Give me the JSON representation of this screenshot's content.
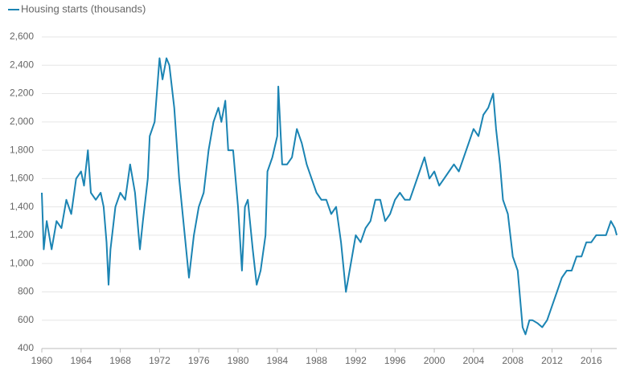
{
  "chart_data": {
    "type": "line",
    "series": [
      {
        "name": "Housing starts (thousands)",
        "color": "#1b84b3",
        "x": [
          1960.0,
          1960.2,
          1960.5,
          1961.0,
          1961.5,
          1962.0,
          1962.5,
          1963.0,
          1963.5,
          1964.0,
          1964.3,
          1964.7,
          1965.0,
          1965.5,
          1966.0,
          1966.3,
          1966.6,
          1966.8,
          1967.0,
          1967.5,
          1968.0,
          1968.5,
          1969.0,
          1969.5,
          1970.0,
          1970.3,
          1970.8,
          1971.0,
          1971.5,
          1972.0,
          1972.3,
          1972.7,
          1973.0,
          1973.5,
          1974.0,
          1974.5,
          1975.0,
          1975.5,
          1976.0,
          1976.5,
          1977.0,
          1977.5,
          1978.0,
          1978.3,
          1978.7,
          1979.0,
          1979.5,
          1980.0,
          1980.4,
          1980.7,
          1981.0,
          1981.5,
          1981.9,
          1982.3,
          1982.8,
          1983.0,
          1983.5,
          1984.0,
          1984.1,
          1984.5,
          1985.0,
          1985.5,
          1986.0,
          1986.5,
          1987.0,
          1987.5,
          1988.0,
          1988.5,
          1989.0,
          1989.5,
          1990.0,
          1990.5,
          1991.0,
          1991.5,
          1992.0,
          1992.5,
          1993.0,
          1993.5,
          1994.0,
          1994.5,
          1995.0,
          1995.5,
          1996.0,
          1996.5,
          1997.0,
          1997.5,
          1998.0,
          1998.5,
          1999.0,
          1999.5,
          2000.0,
          2000.5,
          2001.0,
          2001.5,
          2002.0,
          2002.5,
          2003.0,
          2003.5,
          2004.0,
          2004.5,
          2005.0,
          2005.5,
          2006.0,
          2006.3,
          2006.7,
          2007.0,
          2007.5,
          2008.0,
          2008.5,
          2009.0,
          2009.3,
          2009.7,
          2010.0,
          2010.5,
          2011.0,
          2011.5,
          2012.0,
          2012.5,
          2013.0,
          2013.5,
          2014.0,
          2014.5,
          2015.0,
          2015.5,
          2016.0,
          2016.5,
          2017.0,
          2017.5,
          2018.0,
          2018.4,
          2018.6
        ],
        "values": [
          1500,
          1100,
          1300,
          1100,
          1300,
          1250,
          1450,
          1350,
          1600,
          1650,
          1550,
          1800,
          1500,
          1450,
          1500,
          1400,
          1150,
          850,
          1100,
          1400,
          1500,
          1450,
          1700,
          1500,
          1100,
          1300,
          1600,
          1900,
          2000,
          2450,
          2300,
          2450,
          2400,
          2100,
          1600,
          1250,
          900,
          1200,
          1400,
          1500,
          1800,
          2000,
          2100,
          2000,
          2150,
          1800,
          1800,
          1400,
          950,
          1400,
          1450,
          1100,
          850,
          950,
          1200,
          1650,
          1750,
          1900,
          2250,
          1700,
          1700,
          1750,
          1950,
          1850,
          1700,
          1600,
          1500,
          1450,
          1450,
          1350,
          1400,
          1150,
          800,
          1000,
          1200,
          1150,
          1250,
          1300,
          1450,
          1450,
          1300,
          1350,
          1450,
          1500,
          1450,
          1450,
          1550,
          1650,
          1750,
          1600,
          1650,
          1550,
          1600,
          1650,
          1700,
          1650,
          1750,
          1850,
          1950,
          1900,
          2050,
          2100,
          2200,
          1950,
          1700,
          1450,
          1350,
          1050,
          950,
          550,
          500,
          600,
          600,
          580,
          550,
          600,
          700,
          800,
          900,
          950,
          950,
          1050,
          1050,
          1150,
          1150,
          1200,
          1200,
          1200,
          1300,
          1250,
          1200
        ]
      }
    ],
    "xlim": [
      1960,
      2018.6
    ],
    "xticks": [
      1960,
      1964,
      1968,
      1972,
      1976,
      1980,
      1984,
      1988,
      1992,
      1996,
      2000,
      2004,
      2008,
      2012,
      2016
    ],
    "ylim": [
      400,
      2600
    ],
    "yticks": [
      400,
      600,
      800,
      {
        "value": 1000,
        "label": "1,000"
      },
      {
        "value": 1200,
        "label": "1,200"
      },
      {
        "value": 1400,
        "label": "1,400"
      },
      {
        "value": 1600,
        "label": "1,600"
      },
      {
        "value": 1800,
        "label": "1,800"
      },
      {
        "value": 2000,
        "label": "2,000"
      },
      {
        "value": 2200,
        "label": "2,200"
      },
      {
        "value": 2400,
        "label": "2,400"
      },
      {
        "value": 2600,
        "label": "2,600"
      }
    ],
    "grid": true
  }
}
